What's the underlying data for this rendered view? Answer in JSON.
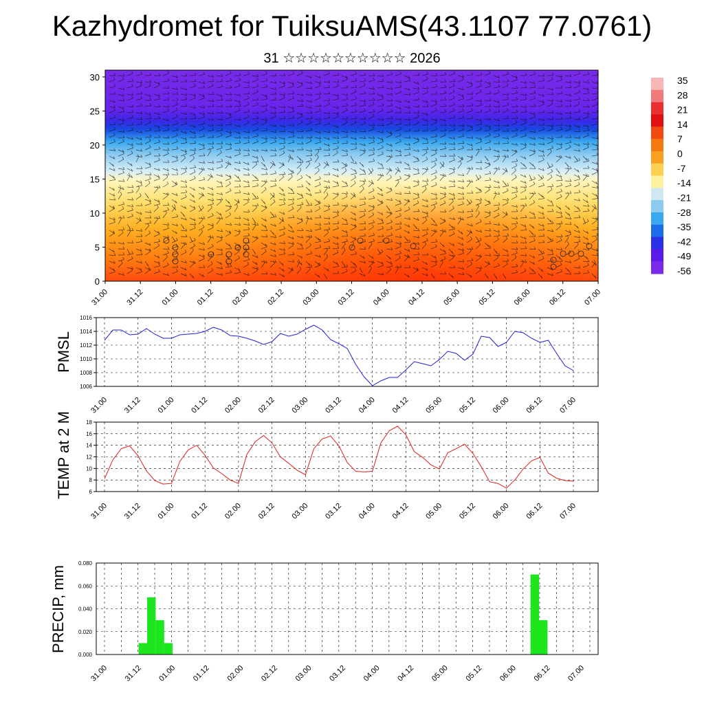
{
  "title": "Kazhydromet for TuiksuAMS(43.1107 77.0761)",
  "subtitle": "31 ☆☆☆☆☆☆☆☆☆☆ 2026",
  "time_labels": [
    "31.00",
    "31.12",
    "01.00",
    "01.12",
    "02.00",
    "02.12",
    "03.00",
    "03.12",
    "04.00",
    "04.12",
    "05.00",
    "05.12",
    "06.00",
    "06.12",
    "07.00"
  ],
  "colors": {
    "pmsl_line": "#1f1fd6",
    "temp_line": "#e01e1e",
    "precip_bar": "#1ee61e",
    "grid": "#000000"
  },
  "chart_data": [
    {
      "type": "heatmap",
      "name": "temperature-cross-section",
      "description_free": true,
      "x_labels": [
        "31.00",
        "31.12",
        "01.00",
        "01.12",
        "02.00",
        "02.12",
        "03.00",
        "03.12",
        "04.00",
        "04.12",
        "05.00",
        "05.12",
        "06.00",
        "06.12",
        "07.00"
      ],
      "y_ticks": [
        0,
        5,
        10,
        15,
        20,
        25,
        30
      ],
      "ylim": [
        0,
        31
      ],
      "colorbar_labels": [
        "35",
        "28",
        "21",
        "14",
        "7",
        "0",
        "-7",
        "-14",
        "-21",
        "-28",
        "-35",
        "-42",
        "-49",
        "-56"
      ],
      "colorbar_colors": [
        "#f6b6b6",
        "#f07a7a",
        "#e83030",
        "#e01010",
        "#f04a10",
        "#f47a10",
        "#f8a020",
        "#fcd050",
        "#fdf2a0",
        "#cfe8f4",
        "#8ccaf0",
        "#3aa8ee",
        "#1a6ce8",
        "#2a30e8",
        "#5a1ae8",
        "#7a2ae8"
      ],
      "freezing_level_km": [
        15.3,
        15.1,
        14.9,
        14.8,
        15.2,
        15.4,
        15.6,
        15.2,
        14.8,
        14.5,
        14.6,
        14.8,
        15.1,
        15.0,
        15.2
      ]
    },
    {
      "type": "line",
      "name": "pmsl",
      "ylabel": "PMSL",
      "ylim": [
        1006,
        1016
      ],
      "y_ticks": [
        1006,
        1008,
        1010,
        1012,
        1014,
        1016
      ],
      "x": [
        0,
        1,
        2,
        3,
        4,
        5,
        6,
        7,
        8,
        9,
        10,
        11,
        12,
        13,
        14,
        15,
        16,
        17,
        18,
        19,
        20,
        21,
        22,
        23,
        24,
        25,
        26,
        27,
        28,
        29,
        30,
        31,
        32,
        33,
        34,
        35,
        36,
        37,
        38,
        39,
        40,
        41,
        42,
        43,
        44,
        45,
        46,
        47,
        48,
        49,
        50,
        51,
        52,
        53,
        54,
        55,
        56
      ],
      "values": [
        1012.7,
        1014.2,
        1014.2,
        1013.5,
        1013.6,
        1014.4,
        1013.6,
        1013.0,
        1013.0,
        1013.5,
        1013.6,
        1013.7,
        1014.0,
        1014.6,
        1014.2,
        1013.4,
        1013.3,
        1013.0,
        1012.6,
        1012.1,
        1012.5,
        1013.7,
        1013.3,
        1013.6,
        1014.3,
        1014.9,
        1014.2,
        1012.8,
        1012.2,
        1011.5,
        1009.2,
        1007.4,
        1006.1,
        1006.8,
        1007.3,
        1007.3,
        1008.4,
        1009.6,
        1009.3,
        1009.0,
        1009.9,
        1011.1,
        1010.8,
        1009.8,
        1010.7,
        1013.3,
        1013.1,
        1011.8,
        1012.4,
        1014.0,
        1013.8,
        1013.0,
        1012.4,
        1012.7,
        1010.8,
        1009.0,
        1008.3
      ]
    },
    {
      "type": "line",
      "name": "temp-2m",
      "ylabel": "TEMP at 2 M",
      "ylim": [
        6,
        18
      ],
      "y_ticks": [
        6,
        8,
        10,
        12,
        14,
        16,
        18
      ],
      "values": [
        8.2,
        11.5,
        13.4,
        13.9,
        12.2,
        9.6,
        7.9,
        7.3,
        7.4,
        11.2,
        13.2,
        14.0,
        12.3,
        10.1,
        9.1,
        8.0,
        7.4,
        12.4,
        14.6,
        15.7,
        14.4,
        12.0,
        10.9,
        9.7,
        8.9,
        13.4,
        15.1,
        15.6,
        13.9,
        11.0,
        9.5,
        9.4,
        9.5,
        14.4,
        16.5,
        17.3,
        15.8,
        12.9,
        11.9,
        10.6,
        9.9,
        12.7,
        13.4,
        14.2,
        12.6,
        10.3,
        7.7,
        7.4,
        6.6,
        8.0,
        9.9,
        11.3,
        11.9,
        9.2,
        8.3,
        7.9,
        7.8
      ]
    },
    {
      "type": "bar",
      "name": "precip",
      "ylabel": "PRECIP, mm",
      "ylim": [
        0,
        0.08
      ],
      "y_ticks": [
        "0.000",
        "0.020",
        "0.040",
        "0.060",
        "0.080"
      ],
      "bars": [
        {
          "t": 4,
          "value": 0.01
        },
        {
          "t": 5,
          "value": 0.05
        },
        {
          "t": 6,
          "value": 0.03
        },
        {
          "t": 7,
          "value": 0.01
        },
        {
          "t": 50,
          "value": 0.07
        },
        {
          "t": 51,
          "value": 0.03
        }
      ]
    }
  ]
}
